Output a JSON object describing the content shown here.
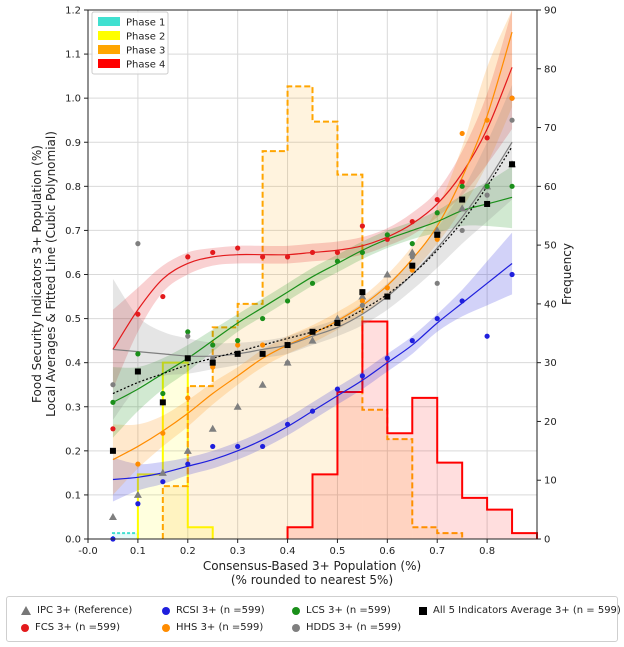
{
  "chart_data": {
    "type": "scatter",
    "xlabel": "Consensus-Based 3+ Population (%)",
    "xlabel2": "(% rounded to nearest 5%)",
    "ylabel": "Food Security Indicators 3+ Population (%)",
    "ylabel2": "Local Averages & Fitted Line (Cubic Polynomial)",
    "y2label": "Frequency",
    "xlim": [
      0.0,
      0.9
    ],
    "ylim": [
      0.0,
      1.2
    ],
    "y2lim": [
      0,
      90
    ],
    "xticks": [
      "-0.0",
      "0.1",
      "0.2",
      "0.3",
      "0.4",
      "0.5",
      "0.6",
      "0.7",
      "0.8"
    ],
    "yticks": [
      "0.0",
      "0.1",
      "0.2",
      "0.3",
      "0.4",
      "0.5",
      "0.6",
      "0.7",
      "0.8",
      "0.9",
      "1.0",
      "1.1",
      "1.2"
    ],
    "y2ticks": [
      "0",
      "10",
      "20",
      "30",
      "40",
      "50",
      "60",
      "70",
      "80",
      "90"
    ],
    "x": [
      0.05,
      0.1,
      0.15,
      0.2,
      0.25,
      0.3,
      0.35,
      0.4,
      0.45,
      0.5,
      0.55,
      0.6,
      0.65,
      0.7,
      0.75,
      0.8,
      0.85
    ],
    "series": [
      {
        "name": "IPC 3+ (Reference)",
        "color": "#7f7f7f",
        "marker": "triangle",
        "values": [
          0.05,
          0.1,
          0.15,
          0.2,
          0.25,
          0.3,
          0.35,
          0.4,
          0.45,
          0.5,
          0.55,
          0.6,
          0.65,
          0.7,
          0.75,
          0.8,
          0.85
        ]
      },
      {
        "name": "FCS 3+ (n =599)",
        "color": "#e31a1c",
        "marker": "circle",
        "values": [
          0.25,
          0.51,
          0.55,
          0.64,
          0.65,
          0.66,
          0.64,
          0.64,
          0.65,
          0.65,
          0.71,
          0.68,
          0.72,
          0.77,
          0.81,
          0.91,
          1.0
        ],
        "fit": [
          0.43,
          0.52,
          0.59,
          0.625,
          0.64,
          0.645,
          0.645,
          0.645,
          0.65,
          0.655,
          0.665,
          0.685,
          0.715,
          0.76,
          0.83,
          0.93,
          1.07
        ],
        "band": [
          0.09,
          0.05,
          0.03,
          0.025,
          0.02,
          0.02,
          0.02,
          0.02,
          0.02,
          0.02,
          0.02,
          0.02,
          0.025,
          0.03,
          0.05,
          0.08,
          0.14
        ]
      },
      {
        "name": "RCSI 3+ (n =599)",
        "color": "#1f1fdd",
        "marker": "circle",
        "values": [
          0.0,
          0.08,
          0.13,
          0.17,
          0.21,
          0.21,
          0.21,
          0.26,
          0.29,
          0.34,
          0.37,
          0.41,
          0.45,
          0.5,
          0.54,
          0.46,
          0.6
        ],
        "fit": [
          0.135,
          0.14,
          0.15,
          0.165,
          0.18,
          0.2,
          0.225,
          0.255,
          0.29,
          0.325,
          0.36,
          0.4,
          0.44,
          0.49,
          0.535,
          0.58,
          0.625
        ],
        "band": [
          0.05,
          0.03,
          0.025,
          0.02,
          0.02,
          0.02,
          0.02,
          0.02,
          0.02,
          0.02,
          0.02,
          0.02,
          0.02,
          0.02,
          0.03,
          0.05,
          0.07
        ]
      },
      {
        "name": "HHS 3+ (n =599)",
        "color": "#ff8c00",
        "marker": "circle",
        "values": [
          0.2,
          0.17,
          0.24,
          0.32,
          0.39,
          0.44,
          0.44,
          0.44,
          0.47,
          0.49,
          0.54,
          0.57,
          0.61,
          0.68,
          0.92,
          0.95,
          1.0
        ],
        "fit": [
          0.18,
          0.21,
          0.245,
          0.285,
          0.33,
          0.37,
          0.41,
          0.44,
          0.465,
          0.495,
          0.53,
          0.575,
          0.635,
          0.71,
          0.82,
          0.96,
          1.15
        ],
        "band": [
          0.08,
          0.05,
          0.035,
          0.03,
          0.025,
          0.02,
          0.02,
          0.02,
          0.02,
          0.02,
          0.02,
          0.025,
          0.03,
          0.04,
          0.07,
          0.11,
          0.17
        ]
      },
      {
        "name": "LCS 3+ (n =599)",
        "color": "#1a8f1a",
        "marker": "circle",
        "values": [
          0.31,
          0.42,
          0.33,
          0.47,
          0.44,
          0.45,
          0.5,
          0.54,
          0.58,
          0.63,
          0.65,
          0.69,
          0.67,
          0.74,
          0.8,
          0.8,
          0.8
        ],
        "fit": [
          0.31,
          0.34,
          0.375,
          0.41,
          0.45,
          0.49,
          0.525,
          0.56,
          0.595,
          0.625,
          0.655,
          0.68,
          0.7,
          0.72,
          0.745,
          0.76,
          0.775
        ],
        "band": [
          0.08,
          0.05,
          0.035,
          0.03,
          0.025,
          0.02,
          0.02,
          0.02,
          0.02,
          0.02,
          0.02,
          0.02,
          0.02,
          0.025,
          0.035,
          0.05,
          0.07
        ]
      },
      {
        "name": "HDDS 3+ (n =599)",
        "color": "#7f7f7f",
        "marker": "circle",
        "values": [
          0.35,
          0.67,
          0.31,
          0.46,
          0.41,
          0.42,
          0.42,
          0.4,
          0.47,
          0.49,
          0.53,
          0.55,
          0.64,
          0.58,
          0.7,
          0.78,
          0.95
        ],
        "fit": [
          0.43,
          0.425,
          0.42,
          0.415,
          0.415,
          0.42,
          0.43,
          0.44,
          0.46,
          0.48,
          0.51,
          0.55,
          0.6,
          0.66,
          0.73,
          0.81,
          0.9
        ],
        "band": [
          0.16,
          0.08,
          0.05,
          0.04,
          0.03,
          0.025,
          0.02,
          0.02,
          0.02,
          0.02,
          0.025,
          0.03,
          0.035,
          0.045,
          0.06,
          0.09,
          0.13
        ]
      },
      {
        "name": "All 5 Indicators Average 3+ (n = 599)",
        "color": "#000000",
        "marker": "square",
        "values": [
          0.2,
          0.38,
          0.31,
          0.41,
          0.4,
          0.42,
          0.42,
          0.44,
          0.47,
          0.49,
          0.56,
          0.55,
          0.62,
          0.69,
          0.77,
          0.76,
          0.85
        ],
        "fit": [
          0.33,
          0.355,
          0.375,
          0.395,
          0.41,
          0.425,
          0.44,
          0.455,
          0.47,
          0.49,
          0.52,
          0.555,
          0.6,
          0.655,
          0.72,
          0.8,
          0.89
        ]
      }
    ],
    "histograms": [
      {
        "name": "Phase 1",
        "color": "#40e0d0",
        "bins": [
          [
            0.05,
            0.1,
            1
          ]
        ]
      },
      {
        "name": "Phase 2",
        "color": "#ffff00",
        "bins": [
          [
            0.1,
            0.15,
            11
          ],
          [
            0.15,
            0.2,
            30
          ],
          [
            0.2,
            0.25,
            2
          ]
        ]
      },
      {
        "name": "Phase 3",
        "color": "#ffa500",
        "bins": [
          [
            0.15,
            0.2,
            9
          ],
          [
            0.2,
            0.25,
            26
          ],
          [
            0.25,
            0.3,
            36
          ],
          [
            0.3,
            0.35,
            40
          ],
          [
            0.35,
            0.4,
            66
          ],
          [
            0.4,
            0.45,
            77
          ],
          [
            0.45,
            0.5,
            71
          ],
          [
            0.5,
            0.55,
            62
          ],
          [
            0.55,
            0.6,
            22
          ],
          [
            0.6,
            0.65,
            17
          ],
          [
            0.65,
            0.7,
            2
          ],
          [
            0.7,
            0.75,
            1
          ]
        ]
      },
      {
        "name": "Phase 4",
        "color": "#ff0000",
        "bins": [
          [
            0.4,
            0.45,
            2
          ],
          [
            0.45,
            0.5,
            11
          ],
          [
            0.5,
            0.55,
            25
          ],
          [
            0.55,
            0.6,
            37
          ],
          [
            0.6,
            0.65,
            18
          ],
          [
            0.65,
            0.7,
            24
          ],
          [
            0.7,
            0.75,
            13
          ],
          [
            0.75,
            0.8,
            7
          ],
          [
            0.8,
            0.85,
            5
          ],
          [
            0.85,
            0.9,
            1
          ]
        ]
      }
    ],
    "phase_legend": [
      "Phase 1",
      "Phase 2",
      "Phase 3",
      "Phase 4"
    ],
    "legend_position": "bottom"
  },
  "legend": {
    "ipc": "IPC 3+ (Reference)",
    "fcs": "FCS 3+ (n =599)",
    "rcsi": "RCSI 3+ (n =599)",
    "hhs": "HHS 3+ (n =599)",
    "lcs": "LCS 3+ (n =599)",
    "hdds": "HDDS 3+ (n =599)",
    "avg": "All 5 Indicators Average 3+ (n = 599)"
  }
}
